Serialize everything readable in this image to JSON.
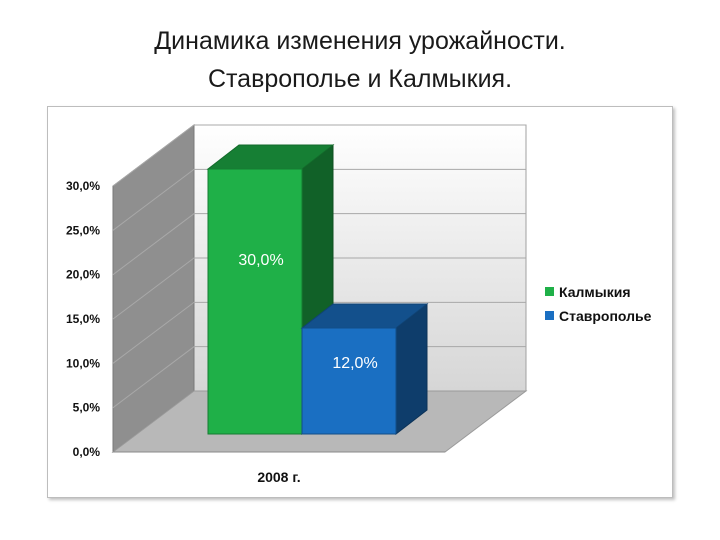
{
  "title": {
    "line1": "Динамика изменения урожайности.",
    "line2": "Ставрополье и Калмыкия."
  },
  "chart_data": {
    "type": "bar",
    "categories": [
      "2008 г."
    ],
    "series": [
      {
        "name": "Калмыкия",
        "values": [
          30.0
        ],
        "color": "#1fb048",
        "label": "30,0%"
      },
      {
        "name": "Ставрополье",
        "values": [
          12.0
        ],
        "color": "#1a6fc2",
        "label": "12,0%"
      }
    ],
    "ylim": [
      0,
      30
    ],
    "yticks": [
      "0,0%",
      "5,0%",
      "10,0%",
      "15,0%",
      "20,0%",
      "25,0%",
      "30,0%"
    ],
    "grid": true,
    "legend": "right",
    "style": "3d"
  }
}
